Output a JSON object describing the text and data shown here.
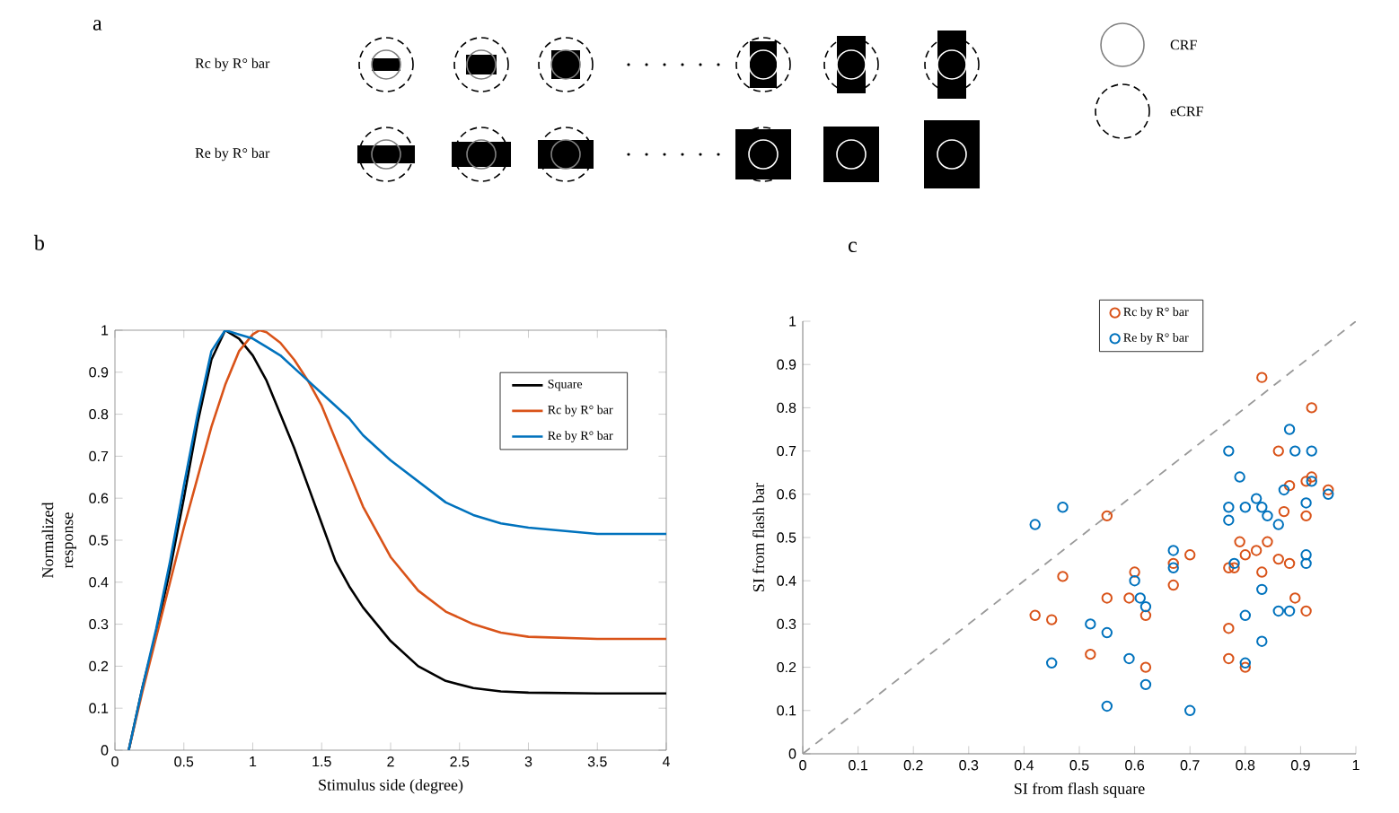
{
  "chart_data": [
    {
      "type": "other",
      "title": "a",
      "annotations": [
        "Rc by R° bar",
        "Re by R° bar",
        "CRF",
        "eCRF"
      ]
    },
    {
      "type": "line",
      "title": "b",
      "xlabel": "Stimulus side (degree)",
      "ylabel": "Normalized response",
      "xlim": [
        0,
        4
      ],
      "ylim": [
        0,
        1
      ],
      "xticks": [
        0,
        0.5,
        1,
        1.5,
        2,
        2.5,
        3,
        3.5,
        4
      ],
      "yticks": [
        0,
        0.1,
        0.2,
        0.3,
        0.4,
        0.5,
        0.6,
        0.7,
        0.8,
        0.9,
        1
      ],
      "legend": "top right",
      "series": [
        {
          "name": "Square",
          "color": "#000000",
          "x": [
            0.1,
            0.2,
            0.3,
            0.4,
            0.5,
            0.6,
            0.7,
            0.8,
            0.9,
            1.0,
            1.1,
            1.2,
            1.3,
            1.4,
            1.5,
            1.6,
            1.7,
            1.8,
            1.9,
            2.0,
            2.2,
            2.4,
            2.6,
            2.8,
            3.0,
            3.5,
            4.0
          ],
          "values": [
            0,
            0.15,
            0.28,
            0.43,
            0.6,
            0.78,
            0.93,
            1.0,
            0.98,
            0.94,
            0.88,
            0.8,
            0.72,
            0.63,
            0.54,
            0.45,
            0.39,
            0.34,
            0.3,
            0.26,
            0.2,
            0.165,
            0.148,
            0.14,
            0.137,
            0.135,
            0.135
          ]
        },
        {
          "name": "Rc by R° bar",
          "color": "#d95319",
          "x": [
            0.1,
            0.2,
            0.3,
            0.4,
            0.5,
            0.6,
            0.7,
            0.8,
            0.9,
            1.0,
            1.05,
            1.1,
            1.2,
            1.3,
            1.4,
            1.5,
            1.6,
            1.7,
            1.8,
            1.9,
            2.0,
            2.2,
            2.4,
            2.6,
            2.8,
            3.0,
            3.5,
            4.0
          ],
          "values": [
            0,
            0.14,
            0.27,
            0.4,
            0.53,
            0.65,
            0.77,
            0.87,
            0.95,
            0.99,
            1.0,
            0.995,
            0.97,
            0.93,
            0.88,
            0.82,
            0.74,
            0.66,
            0.58,
            0.52,
            0.46,
            0.38,
            0.33,
            0.3,
            0.28,
            0.27,
            0.265,
            0.265
          ]
        },
        {
          "name": "Re by R° bar",
          "color": "#0072bd",
          "x": [
            0.1,
            0.2,
            0.3,
            0.4,
            0.5,
            0.6,
            0.7,
            0.8,
            0.9,
            1.0,
            1.1,
            1.2,
            1.3,
            1.4,
            1.5,
            1.6,
            1.7,
            1.8,
            1.9,
            2.0,
            2.2,
            2.4,
            2.6,
            2.8,
            3.0,
            3.5,
            4.0
          ],
          "values": [
            0,
            0.15,
            0.29,
            0.45,
            0.63,
            0.8,
            0.95,
            1.0,
            0.99,
            0.98,
            0.96,
            0.94,
            0.91,
            0.88,
            0.85,
            0.82,
            0.79,
            0.75,
            0.72,
            0.69,
            0.64,
            0.59,
            0.56,
            0.54,
            0.53,
            0.515,
            0.515
          ]
        }
      ]
    },
    {
      "type": "scatter",
      "title": "c",
      "xlabel": "SI from flash square",
      "ylabel": "SI from flash bar",
      "xlim": [
        0,
        1
      ],
      "ylim": [
        0,
        1
      ],
      "xticks": [
        0,
        0.1,
        0.2,
        0.3,
        0.4,
        0.5,
        0.6,
        0.7,
        0.8,
        0.9,
        1
      ],
      "yticks": [
        0,
        0.1,
        0.2,
        0.3,
        0.4,
        0.5,
        0.6,
        0.7,
        0.8,
        0.9,
        1
      ],
      "legend": "top",
      "series": [
        {
          "name": "Rc by R° bar",
          "color": "#d95319",
          "marker": "circle",
          "x": [
            0.83,
            0.92,
            0.86,
            0.92,
            0.91,
            0.88,
            0.95,
            0.87,
            0.91,
            0.55,
            0.79,
            0.84,
            0.82,
            0.8,
            0.86,
            0.88,
            0.7,
            0.6,
            0.67,
            0.78,
            0.77,
            0.83,
            0.47,
            0.67,
            0.55,
            0.59,
            0.89,
            0.42,
            0.45,
            0.62,
            0.91,
            0.77,
            0.52,
            0.77,
            0.62,
            0.8
          ],
          "values": [
            0.87,
            0.8,
            0.7,
            0.64,
            0.63,
            0.62,
            0.61,
            0.56,
            0.55,
            0.55,
            0.49,
            0.49,
            0.47,
            0.46,
            0.45,
            0.44,
            0.46,
            0.42,
            0.44,
            0.43,
            0.43,
            0.42,
            0.41,
            0.39,
            0.36,
            0.36,
            0.36,
            0.32,
            0.31,
            0.32,
            0.33,
            0.29,
            0.23,
            0.22,
            0.2,
            0.2
          ]
        },
        {
          "name": "Re by R° bar",
          "color": "#0072bd",
          "marker": "circle",
          "x": [
            0.88,
            0.77,
            0.89,
            0.92,
            0.79,
            0.92,
            0.87,
            0.82,
            0.95,
            0.91,
            0.47,
            0.77,
            0.8,
            0.83,
            0.84,
            0.42,
            0.77,
            0.86,
            0.67,
            0.91,
            0.91,
            0.78,
            0.67,
            0.6,
            0.61,
            0.62,
            0.83,
            0.52,
            0.55,
            0.8,
            0.86,
            0.88,
            0.45,
            0.59,
            0.8,
            0.83,
            0.62,
            0.55,
            0.7
          ],
          "values": [
            0.75,
            0.7,
            0.7,
            0.7,
            0.64,
            0.63,
            0.61,
            0.59,
            0.6,
            0.58,
            0.57,
            0.57,
            0.57,
            0.57,
            0.55,
            0.53,
            0.54,
            0.53,
            0.47,
            0.46,
            0.44,
            0.44,
            0.43,
            0.4,
            0.36,
            0.34,
            0.38,
            0.3,
            0.28,
            0.32,
            0.33,
            0.33,
            0.21,
            0.22,
            0.21,
            0.26,
            0.16,
            0.11,
            0.1
          ]
        },
        {
          "type": "line",
          "color": "#999999",
          "line_style": "dashed",
          "x": [
            0,
            1
          ],
          "values": [
            0,
            1
          ]
        }
      ]
    }
  ]
}
